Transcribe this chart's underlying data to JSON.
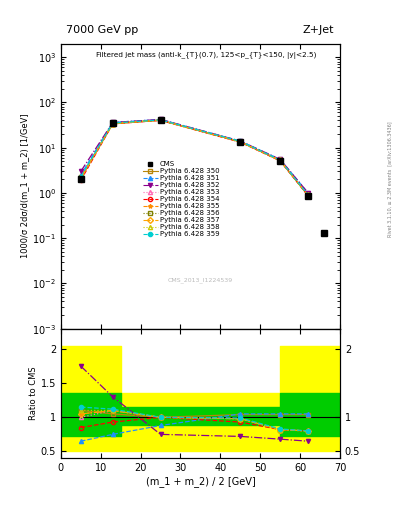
{
  "title_top": "7000 GeV pp",
  "title_right": "Z+Jet",
  "annotation": "Filtered jet mass (anti-k_{T}(0.7), 125<p_{T}<150, |y|<2.5)",
  "cms_label": "CMS_2013_I1224539",
  "rivet_label": "Rivet 3.1.10, ≥ 2.3M events  [arXiv:1306.3436]",
  "ylabel_main": "1000/σ 2dσ/d(m_1 + m_2) [1/GeV]",
  "ylabel_ratio": "Ratio to CMS",
  "xlabel": "(m_1 + m_2) / 2 [GeV]",
  "xlim": [
    0,
    70
  ],
  "ylim_main": [
    0.001,
    2000
  ],
  "ylim_ratio": [
    0.4,
    2.3
  ],
  "x_data": [
    5,
    13,
    25,
    45,
    55,
    62
  ],
  "cms_y": [
    2.0,
    35.0,
    40.0,
    13.0,
    5.0,
    0.85
  ],
  "cms_last_x": 66,
  "cms_last_y": 0.13,
  "series": [
    {
      "label": "Pythia 6.428 350",
      "color": "#b8860b",
      "linestyle": "-",
      "marker": "s",
      "markerfacecolor": "none",
      "y": [
        2.2,
        34.0,
        40.5,
        13.5,
        5.2,
        0.88
      ],
      "ratio": [
        1.1,
        1.05,
        1.0,
        1.04,
        1.04,
        1.04
      ]
    },
    {
      "label": "Pythia 6.428 351",
      "color": "#1e90ff",
      "linestyle": "--",
      "marker": "^",
      "markerfacecolor": "#1e90ff",
      "y": [
        2.5,
        36.0,
        42.0,
        14.0,
        5.5,
        1.0
      ],
      "ratio": [
        0.65,
        0.75,
        0.88,
        1.05,
        1.05,
        1.05
      ]
    },
    {
      "label": "Pythia 6.428 352",
      "color": "#8b008b",
      "linestyle": "-.",
      "marker": "v",
      "markerfacecolor": "#8b008b",
      "y": [
        3.0,
        36.0,
        42.0,
        14.0,
        5.5,
        1.0
      ],
      "ratio": [
        1.75,
        1.3,
        0.75,
        0.72,
        0.68,
        0.65
      ]
    },
    {
      "label": "Pythia 6.428 353",
      "color": "#ff69b4",
      "linestyle": ":",
      "marker": "^",
      "markerfacecolor": "none",
      "y": [
        2.1,
        34.0,
        40.5,
        13.5,
        5.2,
        0.88
      ],
      "ratio": [
        1.0,
        1.1,
        1.0,
        0.98,
        0.82,
        0.8
      ]
    },
    {
      "label": "Pythia 6.428 354",
      "color": "#ff0000",
      "linestyle": "--",
      "marker": "o",
      "markerfacecolor": "none",
      "y": [
        1.9,
        33.5,
        40.0,
        13.2,
        5.1,
        0.86
      ],
      "ratio": [
        0.85,
        0.93,
        1.0,
        0.93,
        0.82,
        0.8
      ]
    },
    {
      "label": "Pythia 6.428 355",
      "color": "#ff8c00",
      "linestyle": "--",
      "marker": "*",
      "markerfacecolor": "#ff8c00",
      "y": [
        2.1,
        34.5,
        40.5,
        13.5,
        5.2,
        0.88
      ],
      "ratio": [
        1.05,
        1.1,
        1.0,
        0.98,
        0.82,
        0.8
      ]
    },
    {
      "label": "Pythia 6.428 356",
      "color": "#808000",
      "linestyle": ":",
      "marker": "s",
      "markerfacecolor": "none",
      "y": [
        2.2,
        34.0,
        40.5,
        13.5,
        5.2,
        0.88
      ],
      "ratio": [
        1.1,
        1.1,
        1.0,
        0.98,
        0.82,
        0.8
      ]
    },
    {
      "label": "Pythia 6.428 357",
      "color": "#ffa500",
      "linestyle": "-.",
      "marker": "D",
      "markerfacecolor": "none",
      "y": [
        2.1,
        34.0,
        40.5,
        13.5,
        5.2,
        0.88
      ],
      "ratio": [
        1.05,
        1.1,
        1.0,
        0.98,
        0.82,
        0.8
      ]
    },
    {
      "label": "Pythia 6.428 358",
      "color": "#c8c800",
      "linestyle": ":",
      "marker": "^",
      "markerfacecolor": "none",
      "y": [
        2.2,
        34.0,
        40.5,
        13.5,
        5.2,
        0.88
      ],
      "ratio": [
        1.1,
        1.1,
        1.0,
        0.98,
        0.82,
        0.8
      ]
    },
    {
      "label": "Pythia 6.428 359",
      "color": "#00ced1",
      "linestyle": "--",
      "marker": "o",
      "markerfacecolor": "#00ced1",
      "y": [
        2.3,
        35.0,
        41.0,
        13.8,
        5.3,
        0.9
      ],
      "ratio": [
        1.15,
        1.12,
        1.0,
        0.99,
        0.83,
        0.8
      ]
    }
  ]
}
